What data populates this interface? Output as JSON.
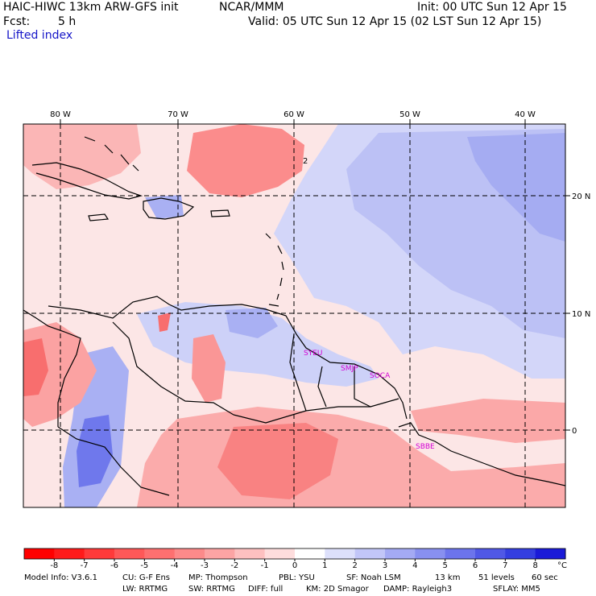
{
  "header": {
    "model_title": "HAIC-HIWC 13km ARW-GFS init",
    "org": "NCAR/MMM",
    "init": "Init: 00 UTC Sun 12 Apr 15",
    "fcst_label": "Fcst:",
    "fcst_value": "5 h",
    "valid": "Valid: 05 UTC Sun 12 Apr 15 (02 LST Sun 12 Apr 15)",
    "field": "Lifted index"
  },
  "map": {
    "lon_labels": [
      "80 W",
      "70 W",
      "60 W",
      "50 W",
      "40 W"
    ],
    "lat_labels": [
      "20 N",
      "10 N",
      "0"
    ],
    "contour_label": "2",
    "stations": [
      "SYEU",
      "SMJP",
      "SOCA",
      "SBBE"
    ]
  },
  "colorbar": {
    "ticks": [
      "-8",
      "-7",
      "-6",
      "-5",
      "-4",
      "-3",
      "-2",
      "-1",
      "0",
      "1",
      "2",
      "3",
      "4",
      "5",
      "6",
      "7",
      "8"
    ],
    "unit": "°C",
    "colors": [
      "#ff1a1a",
      "#ff3a3a",
      "#fe5858",
      "#fd7070",
      "#fc8a8a",
      "#fca4a4",
      "#fdc0c0",
      "#fedddd",
      "#ffffff",
      "#dde0fb",
      "#c2c6f8",
      "#a4aaf4",
      "#8890f0",
      "#6c74ec",
      "#5058e6",
      "#343ee0",
      "#1a1ad8"
    ]
  },
  "footer": {
    "line1": [
      "Model Info: V3.6.1",
      "CU: G-F Ens",
      "MP: Thompson",
      "PBL: YSU",
      "SF: Noah LSM",
      "13 km",
      "51 levels",
      "60 sec"
    ],
    "line2": [
      "LW: RRTMG",
      "SW: RRTMG",
      "DIFF: full",
      "KM: 2D Smagor",
      "DAMP: Rayleigh3",
      "SFLAY: MM5"
    ]
  }
}
